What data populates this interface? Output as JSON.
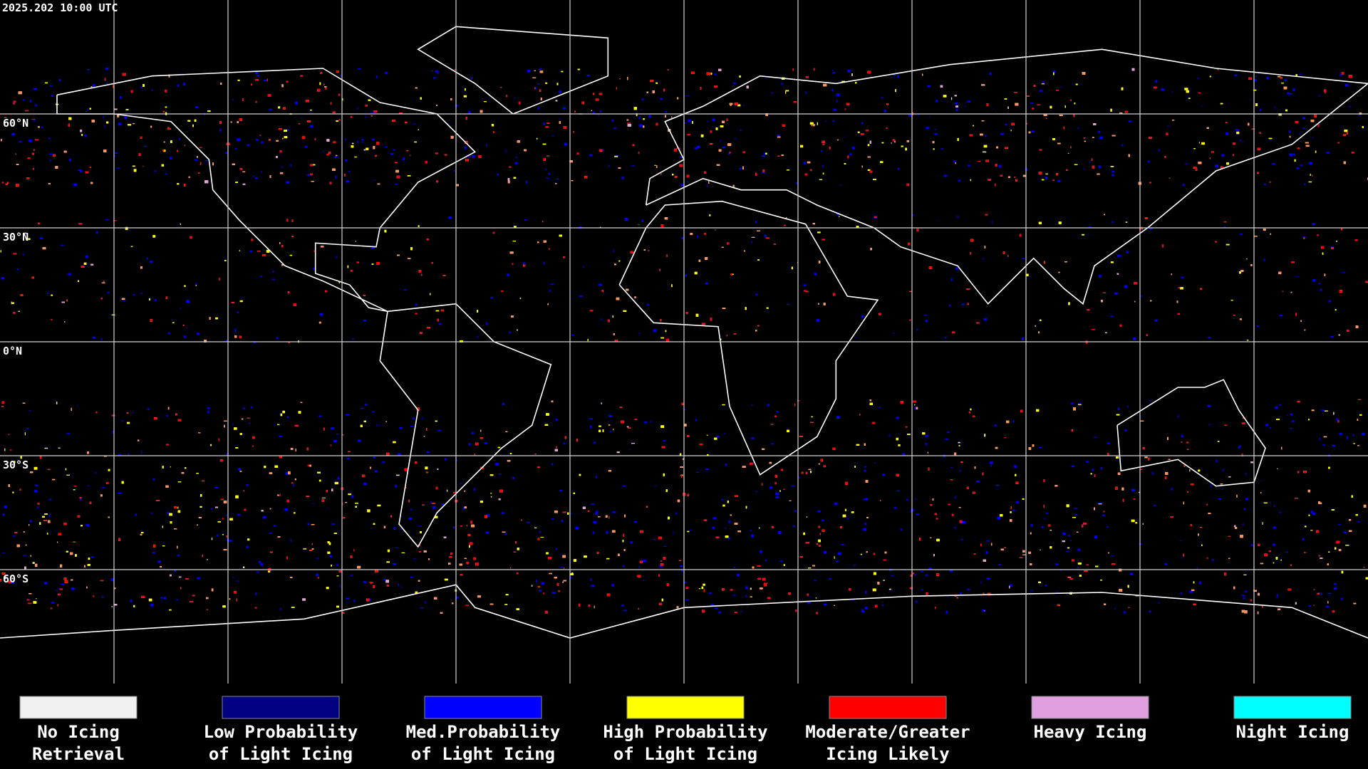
{
  "header": {
    "title": "2025.202 10:00 UTC"
  },
  "map": {
    "lat_labels": [
      "60°N",
      "30°N",
      "0°N",
      "30°S",
      "60°S"
    ]
  },
  "legend": {
    "items": [
      {
        "lines": [
          "No Icing",
          "Retrieval"
        ],
        "color": "#f0f0f0"
      },
      {
        "lines": [
          "Low Probability",
          "of Light Icing"
        ],
        "color": "#000080"
      },
      {
        "lines": [
          "Med.Probability",
          "of Light Icing"
        ],
        "color": "#0000ff"
      },
      {
        "lines": [
          "High Probability",
          "of Light Icing"
        ],
        "color": "#ffff00"
      },
      {
        "lines": [
          "Moderate/Greater",
          "Icing Likely"
        ],
        "color": "#ff0000"
      },
      {
        "lines": [
          "Heavy Icing"
        ],
        "color": "#e0a0e0"
      },
      {
        "lines": [
          "Night Icing"
        ],
        "color": "#00ffff"
      }
    ]
  }
}
